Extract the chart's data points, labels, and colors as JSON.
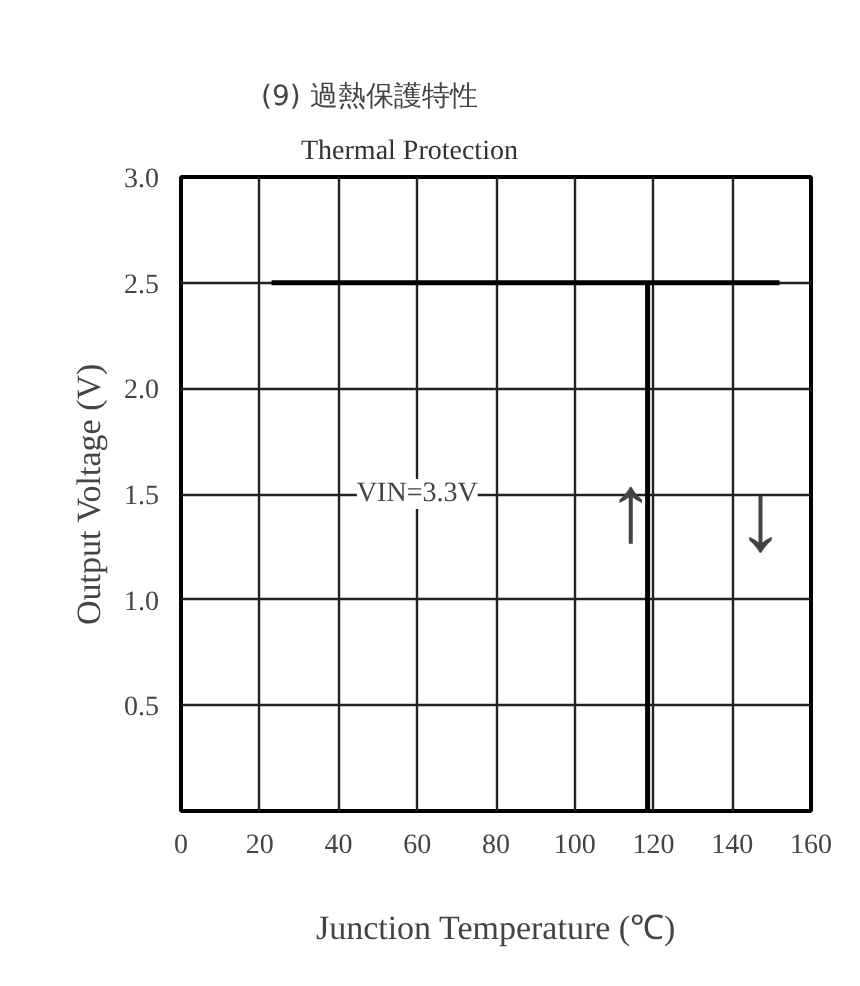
{
  "chart_data": {
    "type": "line",
    "title": "(9) 過熱保護特性",
    "subtitle": "Thermal Protection",
    "xlabel": "Junction Temperature (℃)",
    "ylabel": "Output Voltage (V)",
    "series": [
      {
        "x": [
          23,
          152
        ],
        "values": [
          2.5,
          2.5
        ],
        "color": "#000000"
      },
      {
        "x": [
          118.5,
          118.5
        ],
        "values": [
          2.5,
          0
        ],
        "color": "#000000"
      }
    ],
    "annotations": [
      "VIN=3.3V",
      "↑",
      "↓"
    ],
    "xlim": [
      0,
      160
    ],
    "xticks": [
      0,
      20,
      40,
      60,
      80,
      100,
      120,
      140,
      160
    ],
    "ylim": [
      0,
      3.0
    ],
    "yticks": [
      {
        "value": 0.5,
        "label": "0.5"
      },
      {
        "value": 1.0,
        "label": "1.0"
      },
      {
        "value": 1.5,
        "label": "1.5"
      },
      {
        "value": 2.0,
        "label": "2.0"
      },
      {
        "value": 2.5,
        "label": "2.5"
      },
      {
        "value": 3.0,
        "label": "3.0"
      }
    ],
    "grid": true,
    "marker": "none",
    "line_style": "solid"
  }
}
